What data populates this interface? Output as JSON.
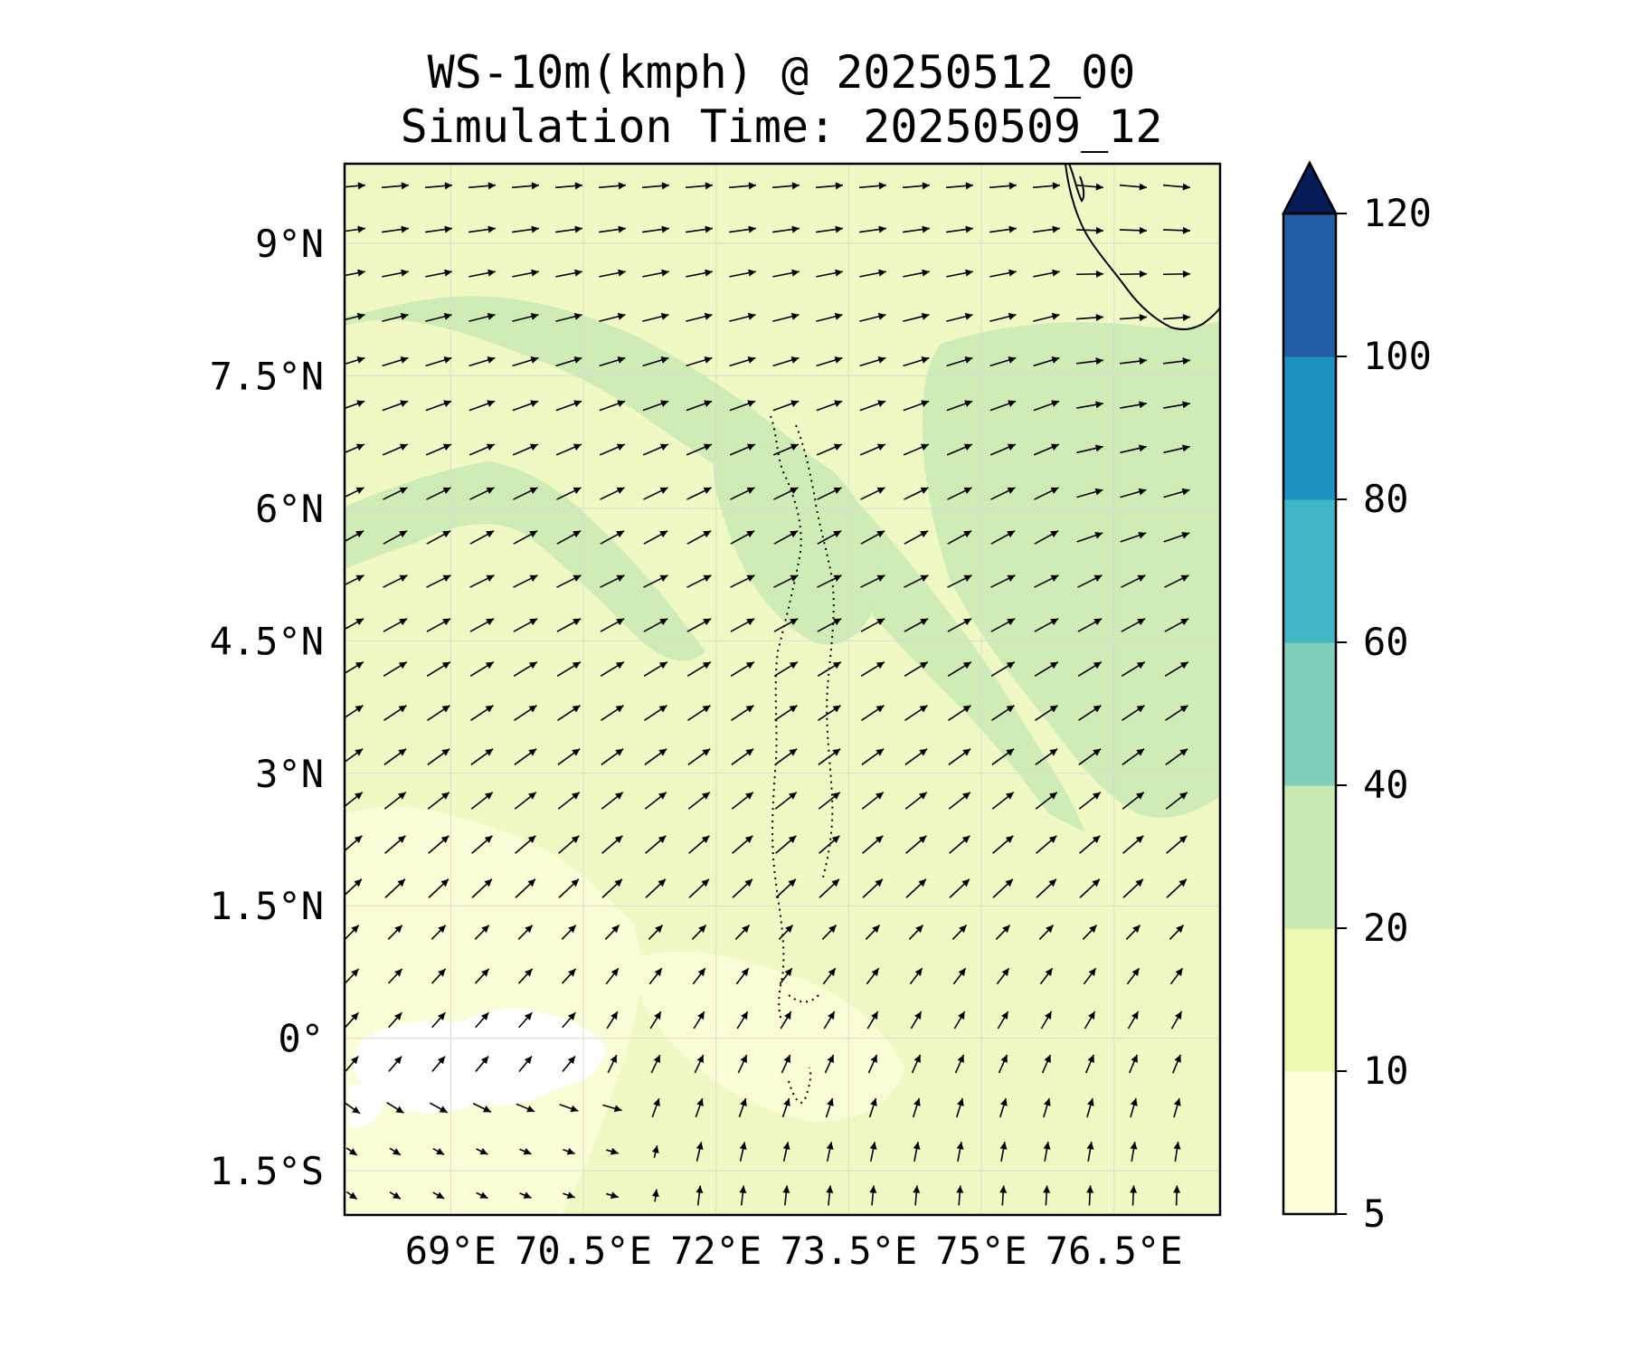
{
  "figure": {
    "title_line1": "WS-10m(kmph) @ 20250512_00",
    "title_line2": "Simulation Time: 20250509_12"
  },
  "map": {
    "lon_range": [
      67.8,
      77.7
    ],
    "lat_range": [
      -2.0,
      9.9
    ],
    "x_ticks": [
      {
        "value": 69.0,
        "label": "69°E"
      },
      {
        "value": 70.5,
        "label": "70.5°E"
      },
      {
        "value": 72.0,
        "label": "72°E"
      },
      {
        "value": 73.5,
        "label": "73.5°E"
      },
      {
        "value": 75.0,
        "label": "75°E"
      },
      {
        "value": 76.5,
        "label": "76.5°E"
      }
    ],
    "y_ticks": [
      {
        "value": 9.0,
        "label": "9°N"
      },
      {
        "value": 7.5,
        "label": "7.5°N"
      },
      {
        "value": 6.0,
        "label": "6°N"
      },
      {
        "value": 4.5,
        "label": "4.5°N"
      },
      {
        "value": 3.0,
        "label": "3°N"
      },
      {
        "value": 1.5,
        "label": "1.5°N"
      },
      {
        "value": 0.0,
        "label": "0°"
      },
      {
        "value": -1.5,
        "label": "1.5°S"
      }
    ],
    "gridlines": true,
    "background_color": "#f0f9c4"
  },
  "colorbar": {
    "levels": [
      {
        "value": 5,
        "label": "5"
      },
      {
        "value": 10,
        "label": "10"
      },
      {
        "value": 20,
        "label": "20"
      },
      {
        "value": 40,
        "label": "40"
      },
      {
        "value": 60,
        "label": "60"
      },
      {
        "value": 80,
        "label": "80"
      },
      {
        "value": 100,
        "label": "100"
      },
      {
        "value": 120,
        "label": "120"
      }
    ],
    "colors": [
      "#ffffd9",
      "#edf8b1",
      "#c7e9b4",
      "#7fcdbb",
      "#41b6c4",
      "#1d91c0",
      "#225ea8",
      "#0c2c84"
    ],
    "extend": "max",
    "extend_color": "#081d58"
  }
}
